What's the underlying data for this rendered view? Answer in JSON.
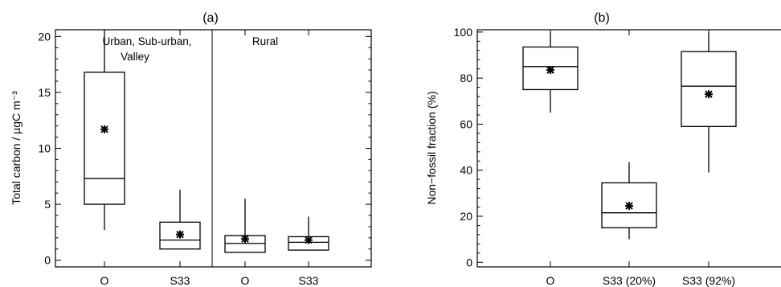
{
  "chart_data": [
    {
      "type": "box",
      "panel_label": "(a)",
      "ylabel": "Total carbon  / µgC m⁻³",
      "ylim": [
        0,
        20.6
      ],
      "yticks": [
        0,
        5,
        10,
        15,
        20
      ],
      "groups": [
        {
          "label": "Urban, Sub-urban,",
          "label2": "Valley",
          "categories": [
            "O",
            "S33"
          ]
        },
        {
          "label": "Rural",
          "label2": "",
          "categories": [
            "O",
            "S33"
          ]
        }
      ],
      "boxes": [
        {
          "category": "O",
          "group": "Urban, Sub-urban, Valley",
          "whisker_low": 2.7,
          "q1": 5.0,
          "median": 7.3,
          "q3": 16.8,
          "whisker_high": 20.6,
          "mean": 11.7
        },
        {
          "category": "S33",
          "group": "Urban, Sub-urban, Valley",
          "whisker_low": 1.0,
          "q1": 1.0,
          "median": 1.8,
          "q3": 3.4,
          "whisker_high": 6.3,
          "mean": 2.3
        },
        {
          "category": "O",
          "group": "Rural",
          "whisker_low": 0.7,
          "q1": 0.7,
          "median": 1.5,
          "q3": 2.2,
          "whisker_high": 5.5,
          "mean": 1.9
        },
        {
          "category": "S33",
          "group": "Rural",
          "whisker_low": 0.9,
          "q1": 0.9,
          "median": 1.6,
          "q3": 2.1,
          "whisker_high": 3.9,
          "mean": 1.8
        }
      ]
    },
    {
      "type": "box",
      "panel_label": "(b)",
      "ylabel": "Non−fossil fraction (%)",
      "ylim": [
        0,
        100
      ],
      "yticks": [
        0,
        20,
        40,
        60,
        80,
        100
      ],
      "boxes": [
        {
          "category": "O",
          "whisker_low": 65,
          "q1": 75,
          "median": 85,
          "q3": 93.5,
          "whisker_high": 100,
          "mean": 83.5
        },
        {
          "category": "S33 (20%)",
          "whisker_low": 10,
          "q1": 15,
          "median": 21.5,
          "q3": 34.5,
          "whisker_high": 43.5,
          "mean": 24.5
        },
        {
          "category": "S33 (92%)",
          "whisker_low": 39,
          "q1": 59,
          "median": 76.5,
          "q3": 91.5,
          "whisker_high": 100,
          "mean": 73
        }
      ]
    }
  ]
}
